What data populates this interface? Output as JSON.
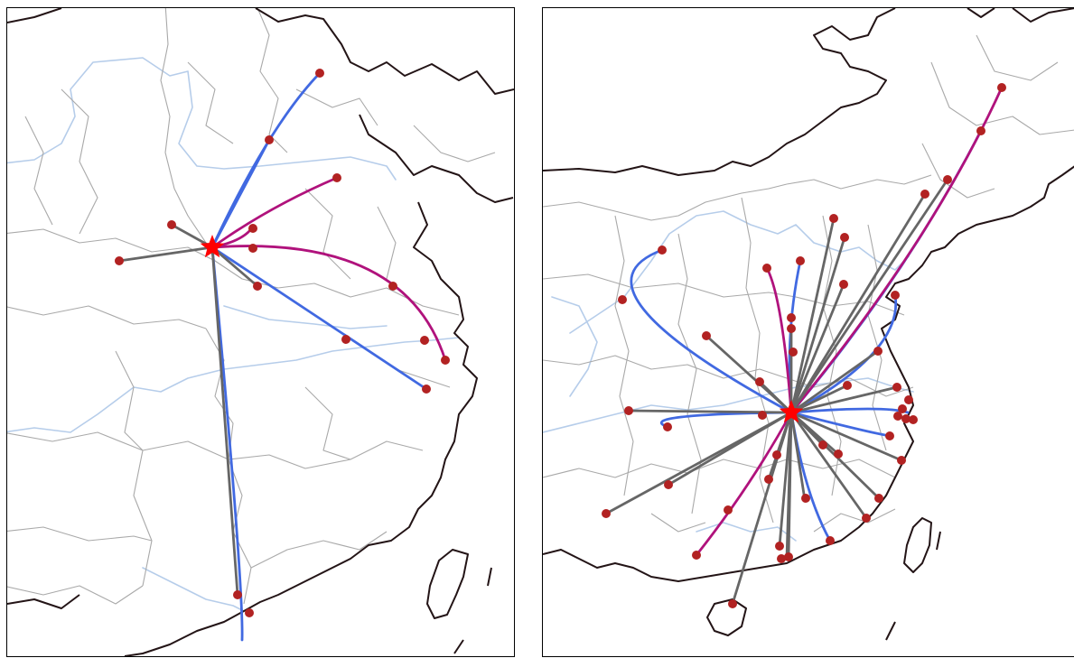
{
  "colors": {
    "coastline": "#231416",
    "province_border": "#a9a9a9",
    "river": "#b6cdea",
    "route_blue": "#4169e1",
    "route_magenta": "#b0127c",
    "route_gray": "#666666",
    "city_node": "#b22222",
    "hub_star": "#ff0000"
  },
  "left_map": {
    "hub_symbol": "star",
    "route_counts": {
      "blue": 4,
      "magenta": 3,
      "gray": 4
    },
    "city_node_count": 14
  },
  "right_map": {
    "hub_symbol": "star",
    "route_counts": {
      "blue": 8,
      "magenta": 3,
      "gray": 26
    },
    "city_node_count": 52
  }
}
